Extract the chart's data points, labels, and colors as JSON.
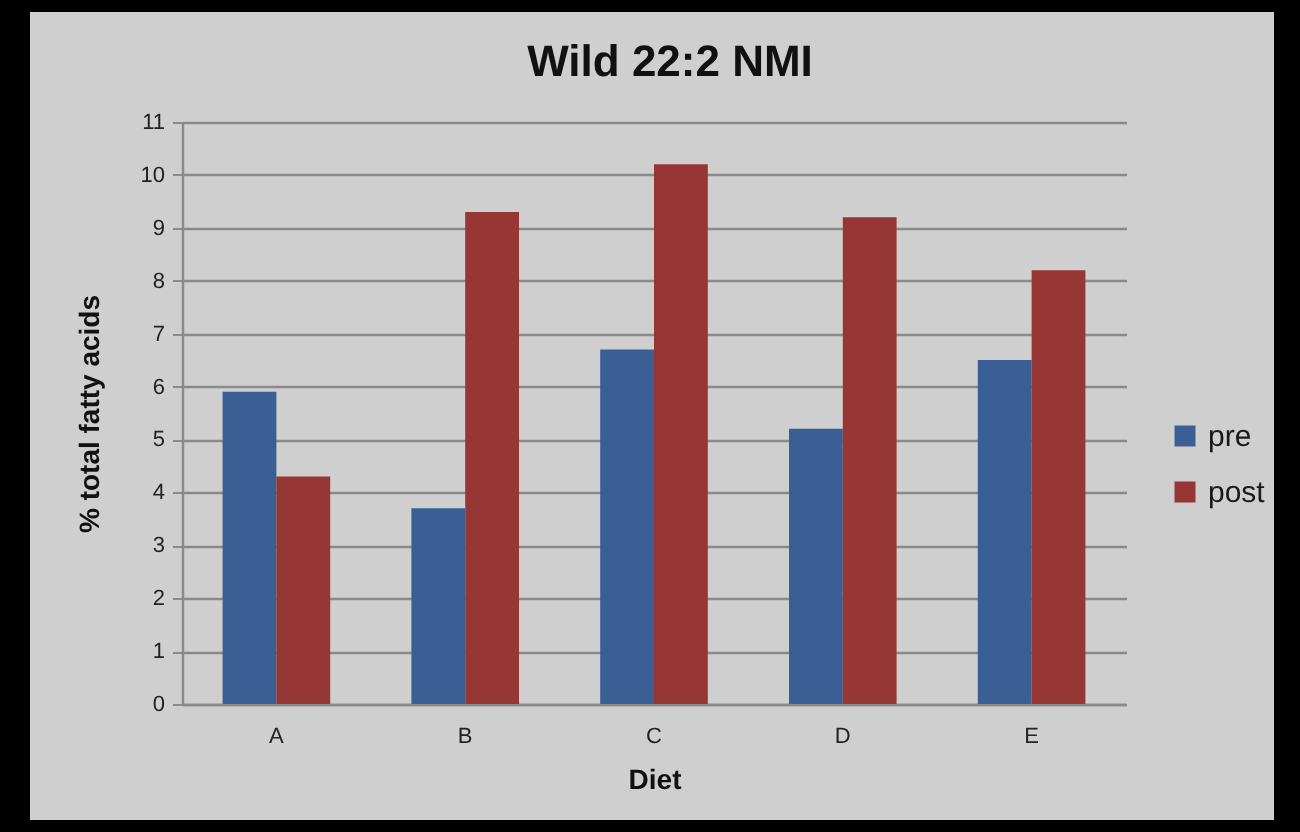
{
  "chart_data": {
    "type": "bar",
    "title": "Wild 22:2 NMI",
    "xlabel": "Diet",
    "ylabel": "% total fatty acids",
    "categories": [
      "A",
      "B",
      "C",
      "D",
      "E"
    ],
    "series": [
      {
        "name": "pre",
        "color": "#3a5f94",
        "values": [
          5.9,
          3.7,
          6.7,
          5.2,
          6.5
        ]
      },
      {
        "name": "post",
        "color": "#973735",
        "values": [
          4.3,
          9.3,
          10.2,
          9.2,
          8.2
        ]
      }
    ],
    "ylim": [
      0,
      11
    ],
    "yticks": [
      0,
      1,
      2,
      3,
      4,
      5,
      6,
      7,
      8,
      9,
      10,
      11
    ],
    "grid": "y",
    "legend": "right"
  }
}
